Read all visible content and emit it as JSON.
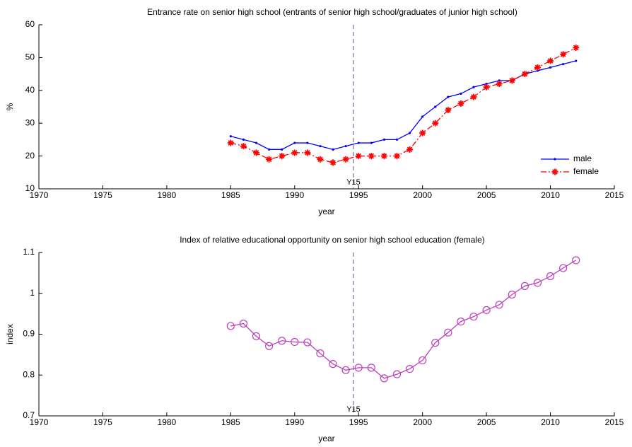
{
  "chart_data": [
    {
      "type": "line",
      "title": "Entrance rate on senior high school (entrants of senior high school/graduates of junior high school)",
      "xlabel": "year",
      "ylabel": "%",
      "x": [
        1985,
        1986,
        1987,
        1988,
        1989,
        1990,
        1991,
        1992,
        1993,
        1994,
        1995,
        1996,
        1997,
        1998,
        1999,
        2000,
        2001,
        2002,
        2003,
        2004,
        2005,
        2006,
        2007,
        2008,
        2009,
        2010,
        2011,
        2012
      ],
      "series": [
        {
          "name": "male",
          "color": "#0000ff",
          "marker": "dot",
          "dash": "solid",
          "values": [
            26,
            25,
            24,
            22,
            22,
            24,
            24,
            23,
            22,
            23,
            24,
            24,
            25,
            25,
            27,
            32,
            35,
            38,
            39,
            41,
            42,
            43,
            43,
            45,
            46,
            47,
            48,
            49
          ]
        },
        {
          "name": "female",
          "color": "#ff0000",
          "marker": "star",
          "dash": "dashdot",
          "values": [
            24,
            23,
            21,
            19,
            20,
            21,
            21,
            19,
            18,
            19,
            20,
            20,
            20,
            20,
            22,
            27,
            30,
            34,
            36,
            38,
            41,
            42,
            43,
            45,
            47,
            49,
            51,
            53
          ]
        }
      ],
      "xlim": [
        1970,
        2015
      ],
      "ylim": [
        10,
        60
      ],
      "xticks": [
        1970,
        1975,
        1980,
        1985,
        1990,
        1995,
        2000,
        2005,
        2010,
        2015
      ],
      "yticks": [
        10,
        20,
        30,
        40,
        50,
        60
      ],
      "vline": {
        "x": 1994.6,
        "label": "Y15",
        "color": "#6a4a8a"
      },
      "legend": "lower right"
    },
    {
      "type": "line",
      "title": "Index of relative educational opportunity on senior high school education (female)",
      "xlabel": "year",
      "ylabel": "index",
      "x": [
        1985,
        1986,
        1987,
        1988,
        1989,
        1990,
        1991,
        1992,
        1993,
        1994,
        1995,
        1996,
        1997,
        1998,
        1999,
        2000,
        2001,
        2002,
        2003,
        2004,
        2005,
        2006,
        2007,
        2008,
        2009,
        2010,
        2011,
        2012
      ],
      "series": [
        {
          "color": "#bf3fbf",
          "marker": "circle",
          "dash": "solid",
          "values": [
            0.92,
            0.926,
            0.895,
            0.871,
            0.884,
            0.881,
            0.88,
            0.853,
            0.827,
            0.812,
            0.818,
            0.818,
            0.792,
            0.802,
            0.815,
            0.836,
            0.879,
            0.904,
            0.931,
            0.943,
            0.959,
            0.972,
            0.997,
            1.018,
            1.026,
            1.042,
            1.062,
            1.081
          ]
        }
      ],
      "xlim": [
        1970,
        2015
      ],
      "ylim": [
        0.7,
        1.1
      ],
      "xticks": [
        1970,
        1975,
        1980,
        1985,
        1990,
        1995,
        2000,
        2005,
        2010,
        2015
      ],
      "yticks": [
        0.7,
        0.8,
        0.9,
        1,
        1.1
      ],
      "vline": {
        "x": 1994.6,
        "label": "Y15",
        "color": "#6a4a8a"
      }
    }
  ]
}
